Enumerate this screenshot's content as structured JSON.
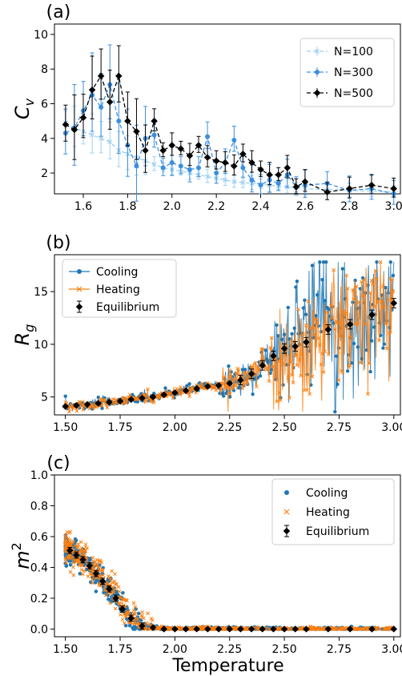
{
  "colors": {
    "n100": "#9fd0f3",
    "n300": "#3a8fe0",
    "n500": "#000000",
    "cooling": "#1f77b4",
    "heating": "#ff7f0e",
    "equilibrium": "#000000"
  },
  "xlabel": "Temperature",
  "chart_data": [
    {
      "type": "line",
      "panel_label": "(a)",
      "ylabel": "C_v",
      "xlim": [
        1.47,
        3.03
      ],
      "ylim": [
        0.8,
        10.6
      ],
      "xticks": [
        "1.6",
        "1.8",
        "2.0",
        "2.2",
        "2.4",
        "2.6",
        "2.8",
        "3.0"
      ],
      "yticks": [
        "2",
        "4",
        "6",
        "8",
        "10"
      ],
      "legend_position": "top-right",
      "series": [
        {
          "name": "N=100",
          "style": "dashed-x",
          "points": [
            [
              1.52,
              4.9
            ],
            [
              1.56,
              4.6
            ],
            [
              1.6,
              4.4
            ],
            [
              1.64,
              4.2
            ],
            [
              1.68,
              4.0
            ],
            [
              1.72,
              3.8
            ],
            [
              1.76,
              3.3
            ],
            [
              1.8,
              3.1
            ],
            [
              1.84,
              2.9
            ],
            [
              1.88,
              2.7
            ],
            [
              1.92,
              2.5
            ],
            [
              1.96,
              2.3
            ],
            [
              2.0,
              2.2
            ],
            [
              2.04,
              2.1
            ],
            [
              2.08,
              2.0
            ],
            [
              2.12,
              1.9
            ],
            [
              2.16,
              1.8
            ],
            [
              2.2,
              1.7
            ],
            [
              2.24,
              1.6
            ],
            [
              2.28,
              1.5
            ],
            [
              2.32,
              1.45
            ],
            [
              2.36,
              1.4
            ],
            [
              2.4,
              1.35
            ],
            [
              2.44,
              1.3
            ],
            [
              2.48,
              1.25
            ],
            [
              2.52,
              1.2
            ],
            [
              2.56,
              1.15
            ],
            [
              2.6,
              1.1
            ],
            [
              2.7,
              1.05
            ],
            [
              2.8,
              1.0
            ],
            [
              2.9,
              0.95
            ],
            [
              3.0,
              0.9
            ]
          ]
        },
        {
          "name": "N=300",
          "style": "dashed-circle",
          "points": [
            [
              1.52,
              4.3
            ],
            [
              1.56,
              4.6
            ],
            [
              1.6,
              5.6
            ],
            [
              1.64,
              6.5
            ],
            [
              1.68,
              5.8
            ],
            [
              1.72,
              7.1
            ],
            [
              1.76,
              5.0
            ],
            [
              1.8,
              3.6
            ],
            [
              1.84,
              2.4
            ],
            [
              1.88,
              4.0
            ],
            [
              1.92,
              4.2
            ],
            [
              1.96,
              2.3
            ],
            [
              2.0,
              2.6
            ],
            [
              2.04,
              2.4
            ],
            [
              2.08,
              2.2
            ],
            [
              2.12,
              2.3
            ],
            [
              2.16,
              4.1
            ],
            [
              2.2,
              2.0
            ],
            [
              2.24,
              2.6
            ],
            [
              2.28,
              3.9
            ],
            [
              2.32,
              2.3
            ],
            [
              2.36,
              1.6
            ],
            [
              2.4,
              1.3
            ],
            [
              2.44,
              1.6
            ],
            [
              2.48,
              1.4
            ],
            [
              2.52,
              1.9
            ],
            [
              2.56,
              1.2
            ],
            [
              2.6,
              1.3
            ],
            [
              2.7,
              1.4
            ],
            [
              2.8,
              1.0
            ],
            [
              2.9,
              1.1
            ],
            [
              3.0,
              0.8
            ]
          ]
        },
        {
          "name": "N=500",
          "style": "dashed-diamond",
          "points": [
            [
              1.52,
              4.8
            ],
            [
              1.56,
              4.5
            ],
            [
              1.6,
              5.2
            ],
            [
              1.64,
              6.8
            ],
            [
              1.68,
              7.6
            ],
            [
              1.72,
              6.1
            ],
            [
              1.76,
              7.6
            ],
            [
              1.8,
              5.0
            ],
            [
              1.84,
              4.4
            ],
            [
              1.88,
              3.3
            ],
            [
              1.92,
              5.0
            ],
            [
              1.96,
              3.3
            ],
            [
              2.0,
              3.6
            ],
            [
              2.04,
              3.4
            ],
            [
              2.08,
              3.0
            ],
            [
              2.12,
              3.6
            ],
            [
              2.16,
              2.9
            ],
            [
              2.2,
              2.7
            ],
            [
              2.24,
              2.6
            ],
            [
              2.28,
              2.4
            ],
            [
              2.32,
              3.1
            ],
            [
              2.36,
              2.6
            ],
            [
              2.4,
              2.2
            ],
            [
              2.44,
              1.9
            ],
            [
              2.48,
              1.9
            ],
            [
              2.52,
              2.3
            ],
            [
              2.56,
              1.2
            ],
            [
              2.6,
              1.5
            ],
            [
              2.7,
              0.9
            ],
            [
              2.8,
              1.1
            ],
            [
              2.9,
              1.3
            ],
            [
              3.0,
              1.1
            ]
          ]
        }
      ]
    },
    {
      "type": "scatter",
      "panel_label": "(b)",
      "ylabel": "R_g",
      "xlim": [
        1.45,
        3.03
      ],
      "ylim": [
        3.3,
        18.5
      ],
      "xticks": [
        "1.50",
        "1.75",
        "2.00",
        "2.25",
        "2.50",
        "2.75",
        "3.00"
      ],
      "yticks": [
        "5",
        "10",
        "15"
      ],
      "legend_position": "top-left",
      "series": [
        {
          "name": "Cooling",
          "style": "line-dot"
        },
        {
          "name": "Heating",
          "style": "line-x"
        },
        {
          "name": "Equilibrium",
          "style": "errorbar-diamond",
          "points": [
            [
              1.5,
              4.1
            ],
            [
              1.55,
              4.2
            ],
            [
              1.6,
              4.3
            ],
            [
              1.65,
              4.4
            ],
            [
              1.7,
              4.5
            ],
            [
              1.75,
              4.6
            ],
            [
              1.8,
              4.75
            ],
            [
              1.85,
              4.9
            ],
            [
              1.9,
              5.0
            ],
            [
              1.95,
              5.2
            ],
            [
              2.0,
              5.4
            ],
            [
              2.05,
              5.6
            ],
            [
              2.1,
              5.8
            ],
            [
              2.15,
              6.0
            ],
            [
              2.2,
              6.1
            ],
            [
              2.25,
              6.3
            ],
            [
              2.3,
              6.6
            ],
            [
              2.35,
              7.2
            ],
            [
              2.4,
              8.0
            ],
            [
              2.45,
              8.9
            ],
            [
              2.5,
              9.6
            ],
            [
              2.55,
              9.8
            ],
            [
              2.6,
              10.2
            ],
            [
              2.7,
              11.4
            ],
            [
              2.8,
              11.9
            ],
            [
              2.9,
              12.8
            ],
            [
              3.0,
              13.9
            ]
          ]
        }
      ]
    },
    {
      "type": "scatter",
      "panel_label": "(c)",
      "ylabel": "m^2",
      "xlim": [
        1.45,
        3.03
      ],
      "ylim": [
        -0.05,
        1.0
      ],
      "xticks": [
        "1.50",
        "1.75",
        "2.00",
        "2.25",
        "2.50",
        "2.75",
        "3.00"
      ],
      "yticks": [
        "0.0",
        "0.2",
        "0.4",
        "0.6",
        "0.8",
        "1.0"
      ],
      "legend_position": "top-right",
      "series": [
        {
          "name": "Cooling",
          "style": "dot"
        },
        {
          "name": "Heating",
          "style": "x"
        },
        {
          "name": "Equilibrium",
          "style": "errorbar-diamond",
          "points": [
            [
              1.52,
              0.51
            ],
            [
              1.55,
              0.48
            ],
            [
              1.58,
              0.45
            ],
            [
              1.61,
              0.41
            ],
            [
              1.64,
              0.36
            ],
            [
              1.67,
              0.31
            ],
            [
              1.7,
              0.26
            ],
            [
              1.73,
              0.2
            ],
            [
              1.76,
              0.13
            ],
            [
              1.8,
              0.07
            ],
            [
              1.85,
              0.02
            ],
            [
              1.9,
              0.01
            ],
            [
              1.95,
              0.0
            ],
            [
              2.0,
              0.0
            ],
            [
              2.05,
              0.0
            ],
            [
              2.1,
              0.0
            ],
            [
              2.15,
              0.0
            ],
            [
              2.2,
              0.0
            ],
            [
              2.25,
              0.0
            ],
            [
              2.3,
              0.0
            ],
            [
              2.35,
              0.0
            ],
            [
              2.4,
              0.0
            ],
            [
              2.45,
              0.0
            ],
            [
              2.5,
              0.0
            ],
            [
              2.55,
              0.0
            ],
            [
              2.6,
              0.0
            ],
            [
              2.7,
              0.0
            ],
            [
              2.8,
              0.0
            ],
            [
              2.9,
              0.0
            ],
            [
              3.0,
              0.0
            ]
          ]
        }
      ]
    }
  ]
}
